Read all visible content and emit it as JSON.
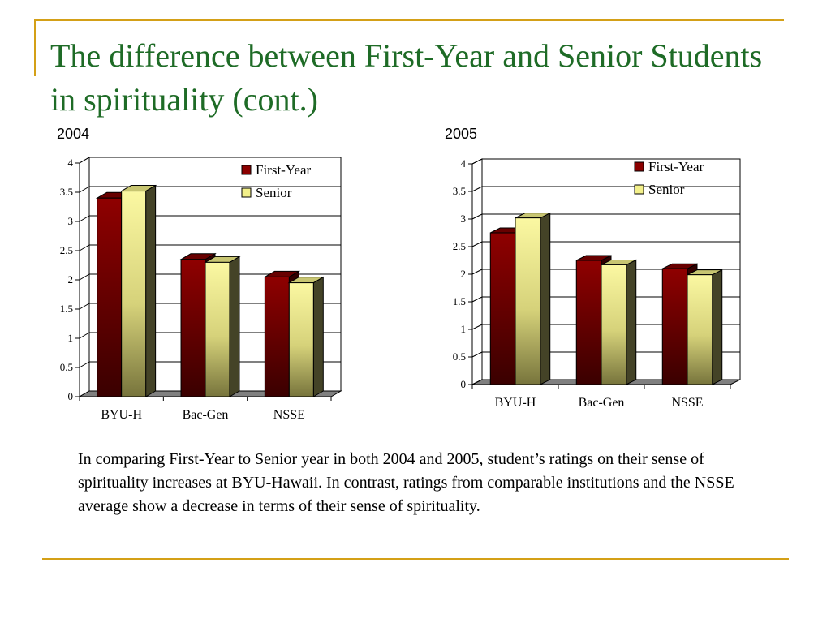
{
  "slide": {
    "title": "The difference between First-Year and Senior Students in spirituality (cont.)",
    "caption": "In comparing First-Year to Senior year in both 2004 and 2005, student’s ratings on their sense of spirituality increases at BYU-Hawaii. In contrast, ratings from comparable institutions and the NSSE average show a decrease in terms of their sense of spirituality."
  },
  "colors": {
    "accent_line": "#d4a017",
    "title": "#1e6b26",
    "first_year": "#8b0000",
    "senior": "#f3f08a"
  },
  "chart_data": [
    {
      "type": "bar",
      "title": "2004",
      "categories": [
        "BYU-H",
        "Bac-Gen",
        "NSSE"
      ],
      "series": [
        {
          "name": "First-Year",
          "values": [
            3.4,
            2.35,
            2.05
          ]
        },
        {
          "name": "Senior",
          "values": [
            3.52,
            2.3,
            1.95
          ]
        }
      ],
      "ylim": [
        0,
        4
      ],
      "yticks": [
        "0",
        "0.5",
        "1",
        "1.5",
        "2",
        "2.5",
        "3",
        "3.5",
        "4"
      ],
      "grid": true,
      "legend": "top-right",
      "style": "3d"
    },
    {
      "type": "bar",
      "title": "2005",
      "categories": [
        "BYU-H",
        "Bac-Gen",
        "NSSE"
      ],
      "series": [
        {
          "name": "First-Year",
          "values": [
            2.75,
            2.25,
            2.1
          ]
        },
        {
          "name": "Senior",
          "values": [
            3.02,
            2.17,
            1.99
          ]
        }
      ],
      "ylim": [
        0,
        4
      ],
      "yticks": [
        "0",
        "0.5",
        "1",
        "1.5",
        "2",
        "2.5",
        "3",
        "3.5",
        "4"
      ],
      "grid": true,
      "legend": "top-right",
      "style": "3d"
    }
  ]
}
